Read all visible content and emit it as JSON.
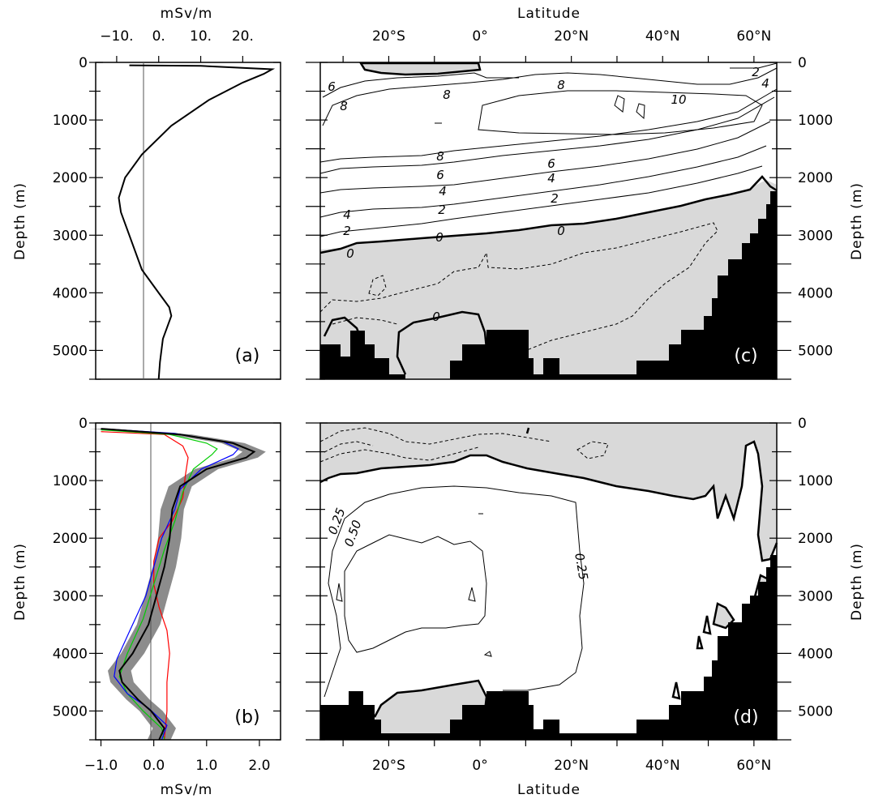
{
  "panel_a": {
    "x_title": "mSv/m",
    "y_title": "Depth (m)",
    "label": "(a)"
  },
  "panel_b": {
    "x_title": "mSv/m",
    "y_title": "Depth (m)",
    "label": "(b)"
  },
  "panel_c": {
    "x_title": "Latitude",
    "y_title": "Depth (m)",
    "label": "(c)",
    "contour_labels": [
      "2",
      "4",
      "6",
      "8",
      "8",
      "10",
      "8",
      "6",
      "4",
      "2",
      "8",
      "6",
      "4",
      "2",
      "4",
      "2",
      "0",
      "0",
      "0",
      "0"
    ]
  },
  "panel_d": {
    "x_title": "Latitude",
    "y_title": "Depth (m)",
    "label": "(d)",
    "contour_labels": [
      "0.25",
      "0.50",
      "0.25"
    ]
  },
  "colors": {
    "shading": "#d9d9d9",
    "land": "#000000",
    "ensemble_band": "#8c8c8c",
    "mean": "#000000",
    "red": "#ff0000",
    "green": "#00cc00",
    "blue": "#0000ff"
  },
  "chart_data": [
    {
      "panel": "a",
      "type": "line",
      "xlabel": "mSv/m",
      "ylabel": "Depth (m)",
      "xlim": [
        -15,
        29
      ],
      "ylim": [
        5500,
        0
      ],
      "x_ticks": [
        "−10.",
        "0.",
        "10.",
        "20."
      ],
      "y_ticks": [
        "0",
        "1000",
        "2000",
        "3000",
        "4000",
        "5000"
      ],
      "series": [
        {
          "values": [
            [
              -7,
              50
            ],
            [
              10,
              60
            ],
            [
              27,
              120
            ],
            [
              25,
              200
            ],
            [
              20,
              350
            ],
            [
              12,
              650
            ],
            [
              3,
              1100
            ],
            [
              -4,
              1600
            ],
            [
              -8,
              2000
            ],
            [
              -9.5,
              2350
            ],
            [
              -9,
              2600
            ],
            [
              -7,
              3000
            ],
            [
              -4,
              3600
            ],
            [
              0,
              4000
            ],
            [
              2.5,
              4250
            ],
            [
              3,
              4400
            ],
            [
              1,
              4800
            ],
            [
              0.3,
              5200
            ],
            [
              0,
              5500
            ]
          ]
        }
      ]
    },
    {
      "panel": "b",
      "type": "line",
      "xlabel": "mSv/m",
      "ylabel": "Depth (m)",
      "xlim": [
        -1.1,
        2.4
      ],
      "ylim": [
        5500,
        0
      ],
      "x_ticks": [
        "−1.0",
        "0.0",
        "1.0",
        "2.0"
      ],
      "y_ticks": [
        "0",
        "1000",
        "2000",
        "3000",
        "4000",
        "5000"
      ],
      "series": [
        {
          "name": "mean",
          "values": [
            [
              -1.0,
              100
            ],
            [
              0.5,
              200
            ],
            [
              1.5,
              350
            ],
            [
              1.9,
              500
            ],
            [
              1.75,
              600
            ],
            [
              1.0,
              800
            ],
            [
              0.5,
              1100
            ],
            [
              0.35,
              1500
            ],
            [
              0.3,
              2000
            ],
            [
              0.2,
              2500
            ],
            [
              0.05,
              3000
            ],
            [
              -0.1,
              3500
            ],
            [
              -0.4,
              4000
            ],
            [
              -0.65,
              4300
            ],
            [
              -0.6,
              4500
            ],
            [
              -0.3,
              4800
            ],
            [
              -0.05,
              5000
            ],
            [
              0.2,
              5300
            ],
            [
              0.1,
              5500
            ]
          ]
        },
        {
          "name": "red",
          "values": [
            [
              -1.0,
              150
            ],
            [
              0.2,
              200
            ],
            [
              0.55,
              400
            ],
            [
              0.65,
              600
            ],
            [
              0.6,
              900
            ],
            [
              0.55,
              1300
            ],
            [
              0.35,
              1700
            ],
            [
              0.1,
              2000
            ],
            [
              0.0,
              2400
            ],
            [
              0.0,
              2800
            ],
            [
              0.1,
              3200
            ],
            [
              0.25,
              3600
            ],
            [
              0.3,
              4000
            ],
            [
              0.25,
              4500
            ],
            [
              0.25,
              5000
            ],
            [
              0.2,
              5500
            ]
          ]
        },
        {
          "name": "green",
          "values": [
            [
              -1.0,
              120
            ],
            [
              0.3,
              200
            ],
            [
              1.0,
              350
            ],
            [
              1.2,
              450
            ],
            [
              1.1,
              550
            ],
            [
              0.75,
              800
            ],
            [
              0.55,
              1200
            ],
            [
              0.4,
              1700
            ],
            [
              0.2,
              2200
            ],
            [
              0.0,
              2800
            ],
            [
              -0.2,
              3400
            ],
            [
              -0.5,
              4000
            ],
            [
              -0.65,
              4400
            ],
            [
              -0.5,
              4700
            ],
            [
              -0.2,
              5000
            ],
            [
              0.15,
              5300
            ],
            [
              0.2,
              5500
            ]
          ]
        },
        {
          "name": "blue",
          "values": [
            [
              -1.0,
              100
            ],
            [
              0.4,
              180
            ],
            [
              1.3,
              320
            ],
            [
              1.6,
              450
            ],
            [
              1.5,
              550
            ],
            [
              0.9,
              800
            ],
            [
              0.5,
              1150
            ],
            [
              0.4,
              1500
            ],
            [
              0.15,
              2000
            ],
            [
              0.0,
              2500
            ],
            [
              -0.15,
              3000
            ],
            [
              -0.45,
              3600
            ],
            [
              -0.7,
              4100
            ],
            [
              -0.75,
              4400
            ],
            [
              -0.5,
              4700
            ],
            [
              -0.1,
              4950
            ],
            [
              0.25,
              5250
            ],
            [
              0.15,
              5500
            ]
          ]
        }
      ],
      "band_halfwidth": 0.22
    },
    {
      "panel": "c",
      "type": "heatmap",
      "xlabel": "Latitude",
      "ylabel": "Depth (m)",
      "xlim": [
        -35,
        65
      ],
      "ylim": [
        5500,
        0
      ],
      "x_ticks": [
        "20°S",
        "0°",
        "20°N",
        "40°N",
        "60°N"
      ],
      "y_ticks": [
        "0",
        "1000",
        "2000",
        "3000",
        "4000",
        "5000"
      ],
      "contour_levels": [
        -2,
        0,
        2,
        4,
        6,
        8,
        10
      ]
    },
    {
      "panel": "d",
      "type": "heatmap",
      "xlabel": "Latitude",
      "ylabel": "Depth (m)",
      "xlim": [
        -35,
        65
      ],
      "ylim": [
        5500,
        0
      ],
      "x_ticks": [
        "20°S",
        "0°",
        "20°N",
        "40°N",
        "60°N"
      ],
      "y_ticks": [
        "0",
        "1000",
        "2000",
        "3000",
        "4000",
        "5000"
      ],
      "contour_levels": [
        0,
        0.25,
        0.5
      ]
    }
  ]
}
